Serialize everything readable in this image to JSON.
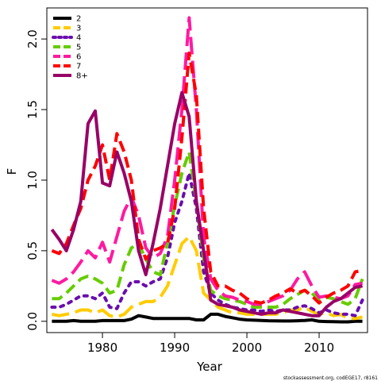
{
  "chart_data": {
    "type": "line",
    "xlabel": "Year",
    "ylabel": "F",
    "xlim": [
      1972.3,
      2016.7
    ],
    "ylim": [
      -0.08,
      2.22
    ],
    "x_ticks": [
      1980,
      1990,
      2000,
      2010
    ],
    "x_tick_labels": [
      "1980",
      "1990",
      "2000",
      "2010"
    ],
    "y_ticks": [
      0,
      0.5,
      1,
      1.5,
      2
    ],
    "y_tick_labels": [
      "0.0",
      "0.5",
      "1.0",
      "1.5",
      "2.0"
    ],
    "legend_position": "top-left",
    "grid": false,
    "x": [
      1973,
      1974,
      1975,
      1976,
      1977,
      1978,
      1979,
      1980,
      1981,
      1982,
      1983,
      1984,
      1985,
      1986,
      1987,
      1988,
      1989,
      1990,
      1991,
      1992,
      1993,
      1994,
      1995,
      1996,
      1997,
      1998,
      1999,
      2000,
      2001,
      2002,
      2003,
      2004,
      2005,
      2006,
      2007,
      2008,
      2009,
      2010,
      2011,
      2012,
      2013,
      2014,
      2015,
      2016
    ],
    "series": [
      {
        "name": "2",
        "color": "#000000",
        "dash": "solid",
        "values": [
          0.0,
          0.0,
          0.0,
          0.005,
          0.0,
          0.0,
          0.0,
          0.005,
          0.005,
          0.005,
          0.005,
          0.015,
          0.04,
          0.03,
          0.02,
          0.02,
          0.02,
          0.02,
          0.02,
          0.02,
          0.01,
          0.01,
          0.05,
          0.05,
          0.035,
          0.025,
          0.015,
          0.01,
          0.008,
          0.006,
          0.004,
          0.003,
          0.002,
          0.002,
          0.004,
          0.006,
          0.01,
          0.0,
          -0.002,
          -0.003,
          -0.004,
          -0.004,
          0.0,
          0.0
        ]
      },
      {
        "name": "3",
        "color": "#ffcc00",
        "dash": "long",
        "values": [
          0.05,
          0.04,
          0.05,
          0.06,
          0.08,
          0.08,
          0.06,
          0.08,
          0.04,
          0.03,
          0.05,
          0.1,
          0.12,
          0.14,
          0.14,
          0.17,
          0.25,
          0.4,
          0.55,
          0.6,
          0.5,
          0.2,
          0.15,
          0.1,
          0.08,
          0.06,
          0.06,
          0.05,
          0.05,
          0.05,
          0.05,
          0.05,
          0.06,
          0.08,
          0.08,
          0.1,
          0.07,
          0.05,
          0.06,
          0.04,
          0.05,
          0.02,
          0.02,
          0.03
        ]
      },
      {
        "name": "4",
        "color": "#6a0dad",
        "dash": "dot",
        "values": [
          0.1,
          0.1,
          0.12,
          0.15,
          0.18,
          0.18,
          0.16,
          0.2,
          0.1,
          0.09,
          0.2,
          0.28,
          0.28,
          0.25,
          0.28,
          0.3,
          0.45,
          0.7,
          0.85,
          1.05,
          0.8,
          0.35,
          0.2,
          0.15,
          0.12,
          0.1,
          0.09,
          0.08,
          0.08,
          0.07,
          0.08,
          0.07,
          0.08,
          0.08,
          0.1,
          0.11,
          0.09,
          0.06,
          0.08,
          0.06,
          0.05,
          0.05,
          0.04,
          0.15
        ]
      },
      {
        "name": "5",
        "color": "#66cc00",
        "dash": "dash",
        "values": [
          0.16,
          0.16,
          0.2,
          0.25,
          0.3,
          0.32,
          0.3,
          0.27,
          0.2,
          0.22,
          0.4,
          0.52,
          0.55,
          0.44,
          0.35,
          0.33,
          0.55,
          0.82,
          1.05,
          1.2,
          0.85,
          0.45,
          0.22,
          0.18,
          0.16,
          0.15,
          0.14,
          0.12,
          0.1,
          0.1,
          0.1,
          0.1,
          0.12,
          0.16,
          0.19,
          0.22,
          0.2,
          0.15,
          0.17,
          0.16,
          0.14,
          0.12,
          0.16,
          0.3
        ]
      },
      {
        "name": "6",
        "color": "#ff1aa0",
        "dash": "long",
        "values": [
          0.29,
          0.27,
          0.3,
          0.35,
          0.42,
          0.5,
          0.45,
          0.56,
          0.42,
          0.6,
          0.78,
          0.88,
          0.75,
          0.52,
          0.45,
          0.48,
          0.6,
          1.0,
          1.5,
          2.15,
          1.5,
          0.6,
          0.3,
          0.22,
          0.18,
          0.17,
          0.15,
          0.14,
          0.12,
          0.12,
          0.14,
          0.16,
          0.18,
          0.22,
          0.3,
          0.35,
          0.25,
          0.17,
          0.18,
          0.17,
          0.16,
          0.18,
          0.26,
          0.27
        ]
      },
      {
        "name": "7",
        "color": "#ff0000",
        "dash": "dash",
        "values": [
          0.5,
          0.48,
          0.55,
          0.68,
          0.8,
          1.0,
          1.1,
          1.25,
          1.0,
          1.33,
          1.2,
          1.0,
          0.58,
          0.44,
          0.5,
          0.52,
          0.55,
          0.8,
          1.3,
          1.9,
          1.6,
          0.8,
          0.35,
          0.25,
          0.25,
          0.22,
          0.2,
          0.16,
          0.14,
          0.13,
          0.15,
          0.18,
          0.2,
          0.23,
          0.2,
          0.22,
          0.18,
          0.13,
          0.17,
          0.2,
          0.22,
          0.25,
          0.35,
          0.36
        ]
      },
      {
        "name": "8+",
        "color": "#990066",
        "dash": "solid",
        "values": [
          0.65,
          0.58,
          0.5,
          0.65,
          0.85,
          1.4,
          1.49,
          0.98,
          0.96,
          1.2,
          1.05,
          0.85,
          0.5,
          0.33,
          0.55,
          0.8,
          1.1,
          1.4,
          1.62,
          1.45,
          0.85,
          0.5,
          0.15,
          0.12,
          0.11,
          0.1,
          0.08,
          0.07,
          0.06,
          0.05,
          0.06,
          0.06,
          0.08,
          0.07,
          0.06,
          0.05,
          0.04,
          0.04,
          0.1,
          0.14,
          0.16,
          0.2,
          0.24,
          0.25
        ]
      }
    ],
    "footer_text": "stockassessment.org, codEGE17, r8161"
  }
}
